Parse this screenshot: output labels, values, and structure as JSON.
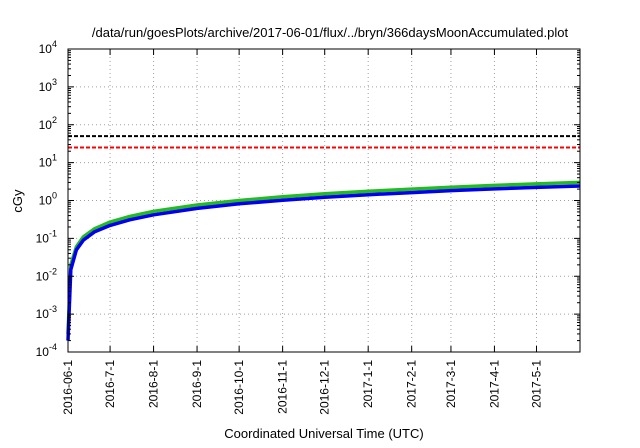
{
  "chart_data": {
    "type": "line",
    "title": "/data/run/goesPlots/archive/2017-06-01/flux/../bryn/366daysMoonAccumulated.plot",
    "xlabel": "Coordinated Universal Time (UTC)",
    "ylabel": "cGy",
    "yscale": "log",
    "ylim": [
      0.0001,
      10000
    ],
    "y_ticks": [
      {
        "value": 0.0001,
        "base": "10",
        "exp": "-4"
      },
      {
        "value": 0.001,
        "base": "10",
        "exp": "-3"
      },
      {
        "value": 0.01,
        "base": "10",
        "exp": "-2"
      },
      {
        "value": 0.1,
        "base": "10",
        "exp": "-1"
      },
      {
        "value": 1,
        "base": "10",
        "exp": "0"
      },
      {
        "value": 10,
        "base": "10",
        "exp": "1"
      },
      {
        "value": 100,
        "base": "10",
        "exp": "2"
      },
      {
        "value": 1000,
        "base": "10",
        "exp": "3"
      },
      {
        "value": 10000,
        "base": "10",
        "exp": "4"
      }
    ],
    "xlim": [
      "2016-06-01",
      "2017-06-01"
    ],
    "x_ticks": [
      "2016-06-1",
      "2016-7-1",
      "2016-8-1",
      "2016-9-1",
      "2016-10-1",
      "2016-11-1",
      "2016-12-1",
      "2017-1-1",
      "2017-2-1",
      "2017-3-1",
      "2017-4-1",
      "2017-5-1"
    ],
    "x_tick_dates": [
      "2016-06-01",
      "2016-07-01",
      "2016-08-01",
      "2016-09-01",
      "2016-10-01",
      "2016-11-01",
      "2016-12-01",
      "2017-01-01",
      "2017-02-01",
      "2017-03-01",
      "2017-04-01",
      "2017-05-01"
    ],
    "grid": true,
    "thresholds": [
      {
        "value": 50,
        "color": "#000000",
        "style": "dashed"
      },
      {
        "value": 25,
        "color": "#ff0000",
        "style": "dashed"
      }
    ],
    "series": [
      {
        "color": "#22bb22",
        "x": [
          "2016-06-01",
          "2016-06-03",
          "2016-06-07",
          "2016-06-12",
          "2016-06-20",
          "2016-07-01",
          "2016-07-15",
          "2016-08-01",
          "2016-09-01",
          "2016-10-01",
          "2016-11-01",
          "2016-12-01",
          "2017-01-01",
          "2017-02-01",
          "2017-03-01",
          "2017-04-01",
          "2017-05-01",
          "2017-06-01"
        ],
        "values": [
          0.0003,
          0.02,
          0.06,
          0.11,
          0.18,
          0.27,
          0.38,
          0.52,
          0.76,
          1.0,
          1.26,
          1.5,
          1.75,
          2.0,
          2.25,
          2.5,
          2.75,
          3.0
        ]
      },
      {
        "color": "#0000ee",
        "x": [
          "2016-06-01",
          "2016-06-03",
          "2016-06-07",
          "2016-06-12",
          "2016-06-20",
          "2016-07-01",
          "2016-07-15",
          "2016-08-01",
          "2016-09-01",
          "2016-10-01",
          "2016-11-01",
          "2016-12-01",
          "2017-01-01",
          "2017-02-01",
          "2017-03-01",
          "2017-04-01",
          "2017-05-01",
          "2017-06-01"
        ],
        "values": [
          0.0002,
          0.015,
          0.05,
          0.09,
          0.15,
          0.22,
          0.31,
          0.42,
          0.62,
          0.82,
          1.02,
          1.22,
          1.42,
          1.62,
          1.82,
          2.02,
          2.22,
          2.42
        ]
      }
    ]
  }
}
